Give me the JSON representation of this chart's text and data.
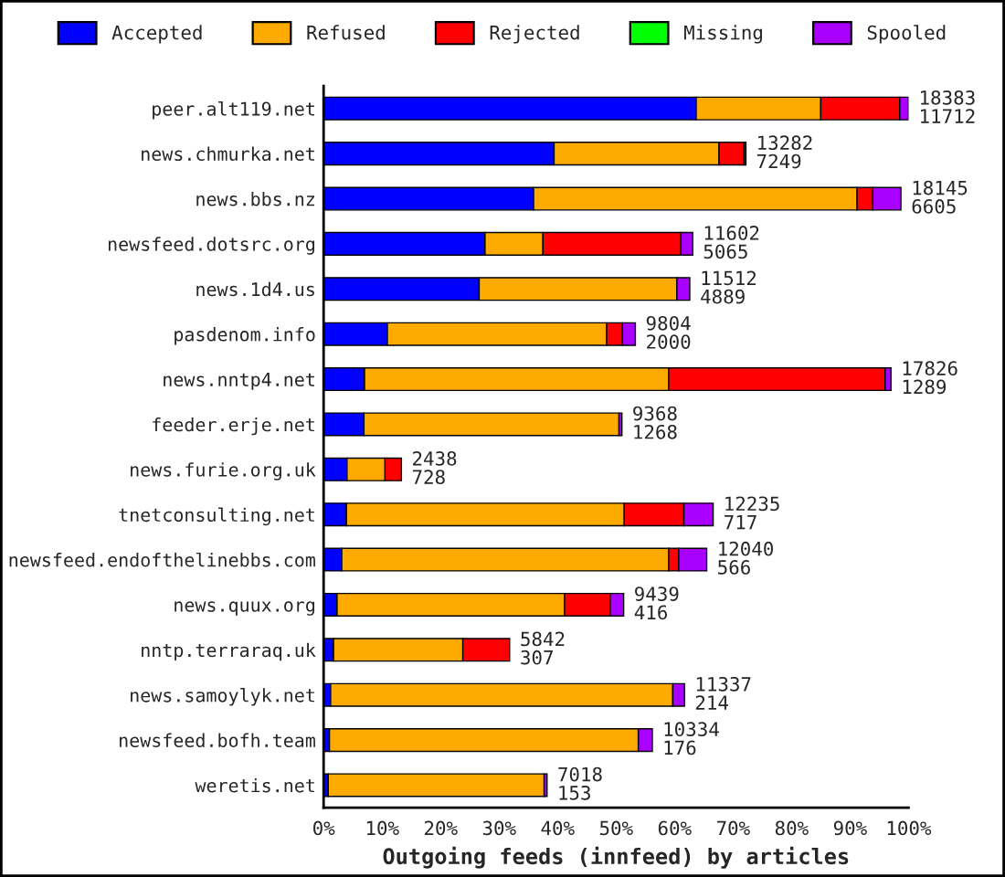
{
  "chart_data": {
    "type": "bar",
    "orientation": "horizontal",
    "stacked": true,
    "xlabel": "Outgoing feeds (innfeed) by articles",
    "categories": [
      "peer.alt119.net",
      "news.chmurka.net",
      "news.bbs.nz",
      "newsfeed.dotsrc.org",
      "news.1d4.us",
      "pasdenom.info",
      "news.nntp4.net",
      "feeder.erje.net",
      "news.furie.org.uk",
      "tnetconsulting.net",
      "newsfeed.endofthelinebbs.com",
      "news.quux.org",
      "nntp.terraraq.uk",
      "news.samoylyk.net",
      "newsfeed.bofh.team",
      "weretis.net"
    ],
    "series": [
      {
        "name": "Accepted",
        "color": "#0000ff",
        "values": [
          63.7,
          39.4,
          35.9,
          27.6,
          26.6,
          10.9,
          7.0,
          6.9,
          4.0,
          3.9,
          3.1,
          2.3,
          1.7,
          1.2,
          1.0,
          0.8
        ]
      },
      {
        "name": "Refused",
        "color": "#ffaa00",
        "values": [
          21.3,
          28.2,
          55.3,
          9.9,
          33.8,
          37.5,
          52.0,
          43.6,
          6.5,
          47.5,
          55.9,
          38.9,
          22.1,
          58.5,
          52.8,
          36.9
        ]
      },
      {
        "name": "Rejected",
        "color": "#ff0000",
        "values": [
          13.5,
          4.3,
          2.7,
          23.6,
          null,
          2.7,
          37.0,
          null,
          2.8,
          10.2,
          1.7,
          7.8,
          8.0,
          null,
          null,
          null
        ]
      },
      {
        "name": "Missing",
        "color": "#00ff00",
        "values": [
          null,
          null,
          null,
          null,
          null,
          null,
          null,
          null,
          null,
          null,
          null,
          null,
          null,
          null,
          null,
          null
        ]
      },
      {
        "name": "Spooled",
        "color": "#aa00ff",
        "values": [
          1.5,
          0.3,
          4.8,
          2.0,
          2.2,
          2.2,
          1.0,
          0.5,
          null,
          5.0,
          4.8,
          2.3,
          null,
          2.0,
          2.4,
          0.5
        ]
      }
    ],
    "xlim": [
      0,
      100
    ],
    "xticks": [
      {
        "value": 0,
        "label": "0%"
      },
      {
        "value": 10,
        "label": "10%"
      },
      {
        "value": 20,
        "label": "20%"
      },
      {
        "value": 30,
        "label": "30%"
      },
      {
        "value": 40,
        "label": "40%"
      },
      {
        "value": 50,
        "label": "50%"
      },
      {
        "value": 60,
        "label": "60%"
      },
      {
        "value": 70,
        "label": "70%"
      },
      {
        "value": 80,
        "label": "80%"
      },
      {
        "value": 90,
        "label": "90%"
      },
      {
        "value": 100,
        "label": "100%"
      }
    ],
    "annotations": [
      {
        "text": "18383\n11712",
        "x": 100.0,
        "y": "peer.alt119.net"
      },
      {
        "text": "13282\n7249",
        "x": 72.2,
        "y": "news.chmurka.net"
      },
      {
        "text": "18145\n6605",
        "x": 98.7,
        "y": "news.bbs.nz"
      },
      {
        "text": "11602\n5065",
        "x": 63.1,
        "y": "newsfeed.dotsrc.org"
      },
      {
        "text": "11512\n4889",
        "x": 62.6,
        "y": "news.1d4.us"
      },
      {
        "text": "9804\n2000",
        "x": 53.3,
        "y": "pasdenom.info"
      },
      {
        "text": "17826\n1289",
        "x": 97.0,
        "y": "news.nntp4.net"
      },
      {
        "text": "9368\n1268",
        "x": 51.0,
        "y": "feeder.erje.net"
      },
      {
        "text": "2438\n728",
        "x": 13.3,
        "y": "news.furie.org.uk"
      },
      {
        "text": "12235\n717",
        "x": 66.6,
        "y": "tnetconsulting.net"
      },
      {
        "text": "12040\n566",
        "x": 65.5,
        "y": "newsfeed.endofthelinebbs.com"
      },
      {
        "text": "9439\n416",
        "x": 51.3,
        "y": "news.quux.org"
      },
      {
        "text": "5842\n307",
        "x": 31.8,
        "y": "nntp.terraraq.uk"
      },
      {
        "text": "11337\n214",
        "x": 61.7,
        "y": "news.samoylyk.net"
      },
      {
        "text": "10334\n176",
        "x": 56.2,
        "y": "newsfeed.bofh.team"
      },
      {
        "text": "7018\n153",
        "x": 38.2,
        "y": "weretis.net"
      }
    ],
    "legend": "top"
  }
}
